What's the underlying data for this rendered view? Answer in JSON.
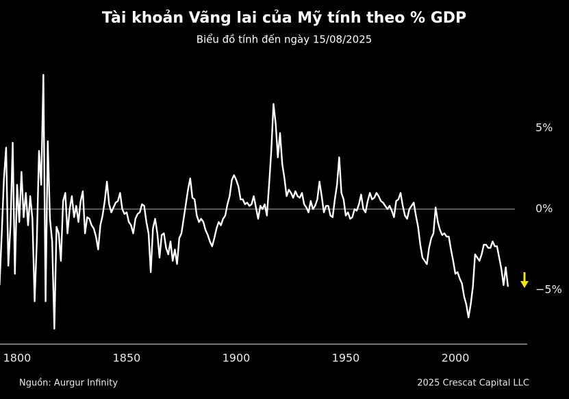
{
  "chart_data": {
    "type": "line",
    "title": "Tài khoản Vãng lai của Mỹ tính theo % GDP",
    "subtitle": "Biểu đồ tính đến ngày 15/08/2025",
    "source": "Nguồn: Aurgur Infinity",
    "credit": "2025 Crescat Capital LLC",
    "color": "#ffffff",
    "zero_line": true,
    "grid": false,
    "xlim": [
      1792.2,
      2032.8
    ],
    "ylim": [
      -8.35,
      8.9
    ],
    "xticks": [
      1800,
      1850,
      1900,
      1950,
      2000
    ],
    "yticks": [
      {
        "value": 5,
        "label": "5%"
      },
      {
        "value": 0,
        "label": "0%"
      },
      {
        "value": -5,
        "label": "−5%"
      }
    ],
    "x": [
      1792,
      1793,
      1794,
      1795,
      1796,
      1797,
      1798,
      1799,
      1800,
      1801,
      1802,
      1803,
      1804,
      1805,
      1806,
      1807,
      1808,
      1809,
      1810,
      1811,
      1812,
      1813,
      1814,
      1815,
      1816,
      1817,
      1818,
      1819,
      1820,
      1821,
      1822,
      1823,
      1824,
      1825,
      1826,
      1827,
      1828,
      1829,
      1830,
      1831,
      1832,
      1833,
      1834,
      1835,
      1836,
      1837,
      1838,
      1839,
      1840,
      1841,
      1842,
      1843,
      1844,
      1845,
      1846,
      1847,
      1848,
      1849,
      1850,
      1851,
      1852,
      1853,
      1854,
      1855,
      1856,
      1857,
      1858,
      1859,
      1860,
      1861,
      1862,
      1863,
      1864,
      1865,
      1866,
      1867,
      1868,
      1869,
      1870,
      1871,
      1872,
      1873,
      1874,
      1875,
      1876,
      1877,
      1878,
      1879,
      1880,
      1881,
      1882,
      1883,
      1884,
      1885,
      1886,
      1887,
      1888,
      1889,
      1890,
      1891,
      1892,
      1893,
      1894,
      1895,
      1896,
      1897,
      1898,
      1899,
      1900,
      1901,
      1902,
      1903,
      1904,
      1905,
      1906,
      1907,
      1908,
      1909,
      1910,
      1911,
      1912,
      1913,
      1914,
      1915,
      1916,
      1917,
      1918,
      1919,
      1920,
      1921,
      1922,
      1923,
      1924,
      1925,
      1926,
      1927,
      1928,
      1929,
      1930,
      1931,
      1932,
      1933,
      1934,
      1935,
      1936,
      1937,
      1938,
      1939,
      1940,
      1941,
      1942,
      1943,
      1944,
      1945,
      1946,
      1947,
      1948,
      1949,
      1950,
      1951,
      1952,
      1953,
      1954,
      1955,
      1956,
      1957,
      1958,
      1959,
      1960,
      1961,
      1962,
      1963,
      1964,
      1965,
      1966,
      1967,
      1968,
      1969,
      1970,
      1971,
      1972,
      1973,
      1974,
      1975,
      1976,
      1977,
      1978,
      1979,
      1980,
      1981,
      1982,
      1983,
      1984,
      1985,
      1986,
      1987,
      1988,
      1989,
      1990,
      1991,
      1992,
      1993,
      1994,
      1995,
      1996,
      1997,
      1998,
      1999,
      2000,
      2001,
      2002,
      2003,
      2004,
      2005,
      2006,
      2007,
      2008,
      2009,
      2010,
      2011,
      2012,
      2013,
      2014,
      2015,
      2016,
      2017,
      2018,
      2019,
      2020,
      2021,
      2022,
      2023,
      2024
    ],
    "values": [
      -4.7,
      -1.5,
      1.9,
      3.8,
      -3.5,
      -1.0,
      4.1,
      -4.0,
      1.5,
      -0.8,
      2.3,
      -0.5,
      1.0,
      -1.0,
      0.8,
      -0.6,
      -5.7,
      -2.0,
      3.6,
      1.5,
      8.3,
      -5.7,
      4.2,
      -0.6,
      -2.0,
      -7.4,
      -1.1,
      -1.5,
      -3.2,
      0.5,
      1.0,
      -1.5,
      0.0,
      0.8,
      -0.5,
      0.2,
      -0.8,
      0.5,
      1.1,
      -1.5,
      -0.5,
      -0.6,
      -1.0,
      -1.2,
      -1.7,
      -2.5,
      -1.0,
      -0.4,
      0.5,
      1.7,
      0.3,
      -0.2,
      0.1,
      0.4,
      0.5,
      1.0,
      0.0,
      -0.3,
      -0.2,
      -0.8,
      -1.0,
      -1.5,
      -0.6,
      -0.3,
      -0.2,
      0.3,
      0.2,
      -0.8,
      -1.5,
      -3.9,
      -1.2,
      -0.6,
      -1.5,
      -3.0,
      -1.6,
      -1.5,
      -2.4,
      -2.8,
      -2.0,
      -3.2,
      -2.5,
      -3.4,
      -1.8,
      -1.5,
      -0.6,
      0.3,
      1.2,
      1.9,
      0.7,
      0.6,
      -0.4,
      -0.8,
      -0.6,
      -0.8,
      -1.3,
      -1.6,
      -2.0,
      -2.3,
      -1.8,
      -1.2,
      -0.8,
      -1.0,
      -0.6,
      -0.4,
      0.3,
      0.8,
      1.8,
      2.1,
      1.8,
      1.4,
      0.6,
      0.6,
      0.3,
      0.4,
      0.2,
      0.3,
      0.8,
      0.1,
      -0.6,
      0.2,
      0.0,
      0.3,
      -0.4,
      1.5,
      3.6,
      6.5,
      5.3,
      3.2,
      4.7,
      2.8,
      1.9,
      0.8,
      1.2,
      1.0,
      0.7,
      1.1,
      0.8,
      0.7,
      1.0,
      0.3,
      0.1,
      -0.2,
      0.5,
      0.0,
      0.2,
      0.6,
      1.7,
      0.8,
      -0.2,
      0.2,
      0.2,
      -0.4,
      -0.5,
      0.6,
      1.5,
      3.2,
      1.0,
      0.6,
      -0.4,
      -0.2,
      -0.6,
      -0.5,
      0.0,
      -0.1,
      0.3,
      0.9,
      0.0,
      -0.2,
      0.5,
      1.0,
      0.6,
      0.7,
      1.0,
      0.8,
      0.5,
      0.4,
      0.2,
      0.0,
      0.2,
      -0.1,
      -0.5,
      0.5,
      0.6,
      1.0,
      0.2,
      -0.4,
      -0.6,
      0.0,
      0.2,
      0.4,
      -0.4,
      -1.1,
      -2.2,
      -3.0,
      -3.2,
      -3.4,
      -2.4,
      -1.8,
      -1.5,
      0.1,
      -0.8,
      -1.3,
      -1.6,
      -1.5,
      -1.7,
      -1.7,
      -2.5,
      -3.2,
      -4.0,
      -3.9,
      -4.3,
      -4.6,
      -5.4,
      -5.9,
      -6.7,
      -5.9,
      -4.8,
      -2.8,
      -3.0,
      -3.2,
      -2.8,
      -2.2,
      -2.2,
      -2.4,
      -2.4,
      -2.0,
      -2.3,
      -2.3,
      -3.0,
      -3.7,
      -4.7,
      -3.6,
      -4.8
    ]
  }
}
